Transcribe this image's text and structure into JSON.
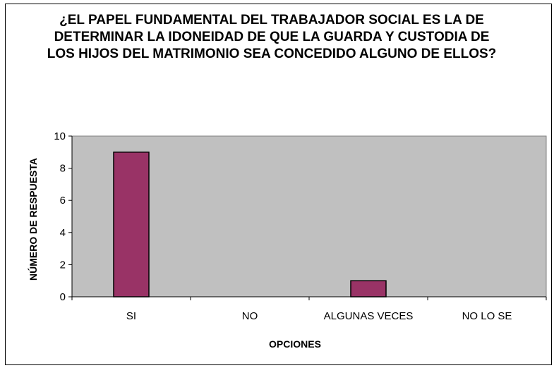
{
  "chart_data": {
    "type": "bar",
    "title": "¿EL PAPEL FUNDAMENTAL DEL TRABAJADOR SOCIAL ES LA DE DETERMINAR LA IDONEIDAD DE QUE LA GUARDA Y CUSTODIA DE LOS HIJOS DEL MATRIMONIO SEA CONCEDIDO ALGUNO DE ELLOS?",
    "xlabel": "OPCIONES",
    "ylabel": "NÚMERO DE RESPUESTA",
    "categories": [
      "SI",
      "NO",
      "ALGUNAS VECES",
      "NO LO SE"
    ],
    "values": [
      9,
      0,
      1,
      0
    ],
    "ylim": [
      0,
      10
    ],
    "yticks": [
      "0",
      "2",
      "4",
      "6",
      "8",
      "10"
    ],
    "grid": false,
    "legend": "none",
    "colors": {
      "bar": "#993366",
      "plot_background": "#c0c0c0",
      "bar_outline": "#000000"
    }
  }
}
